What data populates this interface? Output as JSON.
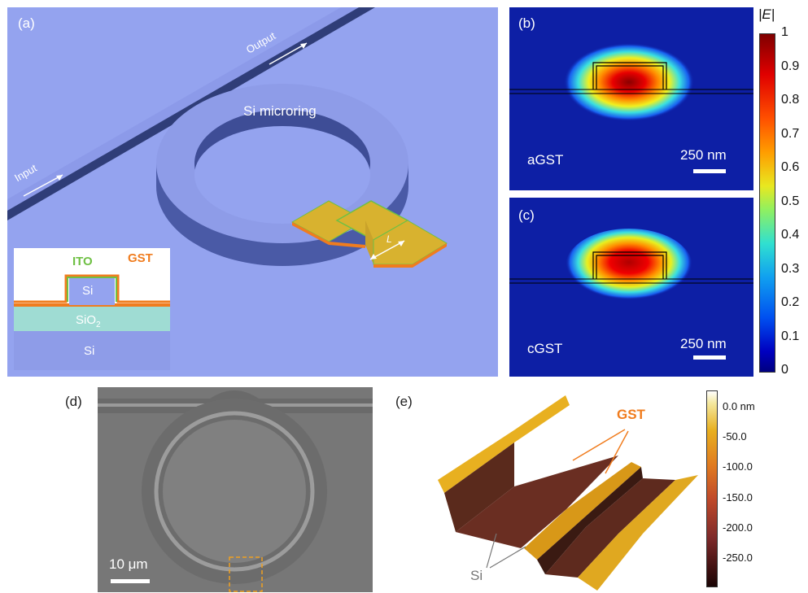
{
  "panels": {
    "a": {
      "label": "(a)",
      "input_label": "Input",
      "output_label": "Output",
      "ring_label": "Si microring",
      "length_label": "L",
      "inset": {
        "ito_label": "ITO",
        "gst_label": "GST",
        "si_top_label": "Si",
        "sio2_label": "SiO",
        "sio2_sub": "2",
        "si_bottom_label": "Si"
      }
    },
    "b": {
      "label": "(b)",
      "state_label": "aGST",
      "scale_label": "250 nm"
    },
    "c": {
      "label": "(c)",
      "state_label": "cGST",
      "scale_label": "250 nm"
    },
    "colorbar_e": {
      "title": "|E|",
      "ticks": [
        "1",
        "0.9",
        "0.8",
        "0.7",
        "0.6",
        "0.5",
        "0.4",
        "0.3",
        "0.2",
        "0.1",
        "0"
      ]
    },
    "d": {
      "label": "(d)",
      "scale_label": "10 μm"
    },
    "e": {
      "label": "(e)",
      "gst_label": "GST",
      "si_label": "Si",
      "colorbar": {
        "ticks": [
          "0.0 nm",
          "-50.0",
          "-100.0",
          "-150.0",
          "-200.0",
          "-250.0"
        ]
      }
    }
  },
  "colors": {
    "background_a": "#94a3ef",
    "waveguide": "#3a4a84",
    "gst": "#d8b22f",
    "ito": "#6fc044",
    "gst_orange": "#f07c1e",
    "field_bg": "#0d1fa5"
  }
}
